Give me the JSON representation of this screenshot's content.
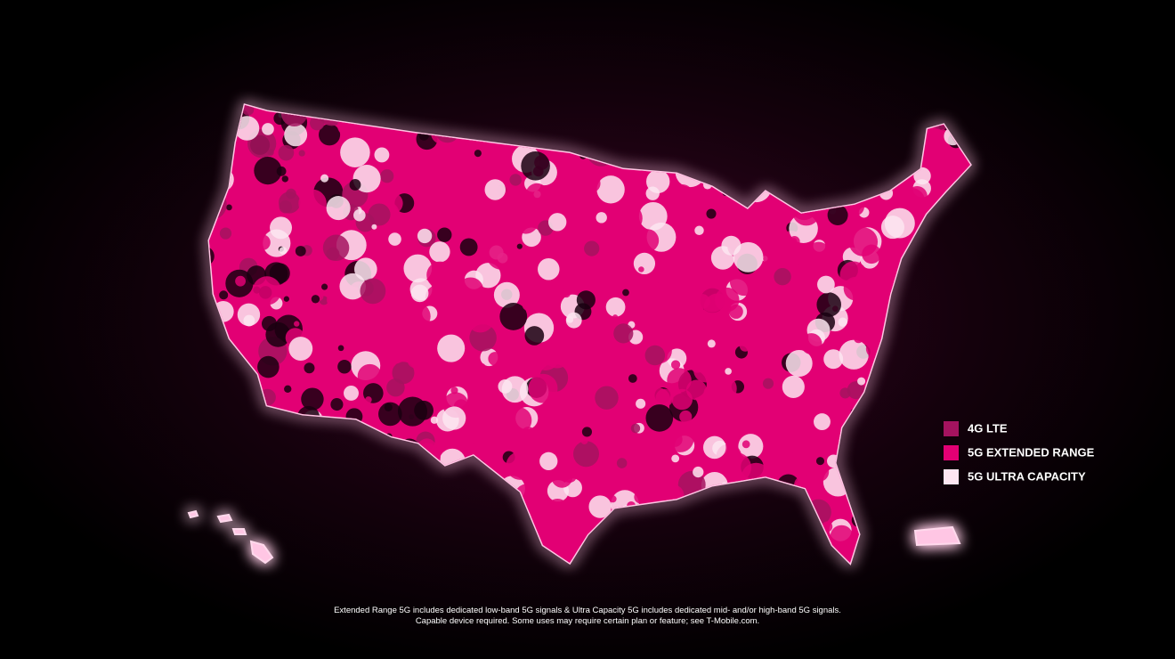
{
  "legend": [
    {
      "label": "4G LTE",
      "color": "#a4135f"
    },
    {
      "label": "5G EXTENDED RANGE",
      "color": "#e20074"
    },
    {
      "label": "5G ULTRA CAPACITY",
      "color": "#fde6f1"
    }
  ],
  "footnote": [
    "Extended Range 5G includes dedicated low-band 5G signals & Ultra Capacity 5G includes dedicated mid- and/or high-band 5G signals.",
    "Capable device required. Some uses may require certain plan or feature; see T-Mobile.com."
  ]
}
